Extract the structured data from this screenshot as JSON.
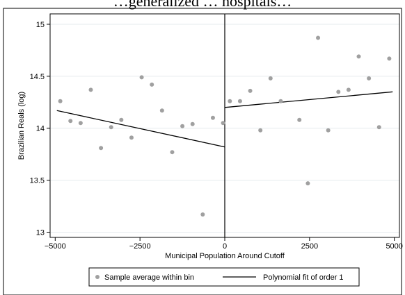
{
  "title_fragment": "…generalized … hospitals…",
  "chart_data": {
    "type": "scatter",
    "xlabel": "Municipal Population Around Cutoff",
    "ylabel": "Brazilian Reals (log)",
    "xlim": [
      -5150,
      5150
    ],
    "ylim": [
      12.95,
      15.1
    ],
    "x_ticks": [
      -5000,
      -2500,
      0,
      2500,
      5000
    ],
    "x_tick_labels": [
      "−5000",
      "−2500",
      "0",
      "2500",
      "5000"
    ],
    "y_ticks": [
      13,
      13.5,
      14,
      14.5,
      15
    ],
    "y_tick_labels": [
      "13",
      "13.5",
      "14",
      "14.5",
      "15"
    ],
    "grid": "horizontal",
    "cutoff_x": 0,
    "legend_position": "bottom",
    "series": [
      {
        "name": "Sample average within bin",
        "kind": "points",
        "color": "#a0a0a0",
        "points": [
          [
            -4850,
            14.26
          ],
          [
            -4550,
            14.07
          ],
          [
            -4250,
            14.05
          ],
          [
            -3950,
            14.37
          ],
          [
            -3650,
            13.81
          ],
          [
            -3350,
            14.01
          ],
          [
            -3050,
            14.08
          ],
          [
            -2750,
            13.91
          ],
          [
            -2450,
            14.49
          ],
          [
            -2150,
            14.42
          ],
          [
            -1850,
            14.17
          ],
          [
            -1550,
            13.77
          ],
          [
            -1250,
            14.02
          ],
          [
            -950,
            14.04
          ],
          [
            -650,
            13.17
          ],
          [
            -350,
            14.1
          ],
          [
            -50,
            14.05
          ],
          [
            150,
            14.26
          ],
          [
            450,
            14.26
          ],
          [
            750,
            14.36
          ],
          [
            1050,
            13.98
          ],
          [
            1350,
            14.48
          ],
          [
            1650,
            14.26
          ],
          [
            2200,
            14.08
          ],
          [
            2450,
            13.47
          ],
          [
            2750,
            14.87
          ],
          [
            3050,
            13.98
          ],
          [
            3350,
            14.35
          ],
          [
            3650,
            14.37
          ],
          [
            3950,
            14.69
          ],
          [
            4250,
            14.48
          ],
          [
            4550,
            14.01
          ],
          [
            4850,
            14.67
          ]
        ]
      },
      {
        "name": "Polynomial fit of order 1",
        "kind": "line",
        "color": "#000000",
        "segments": [
          [
            [
              -4950,
              14.17
            ],
            [
              0,
              13.82
            ]
          ],
          [
            [
              0,
              14.2
            ],
            [
              4950,
              14.35
            ]
          ]
        ]
      }
    ]
  }
}
